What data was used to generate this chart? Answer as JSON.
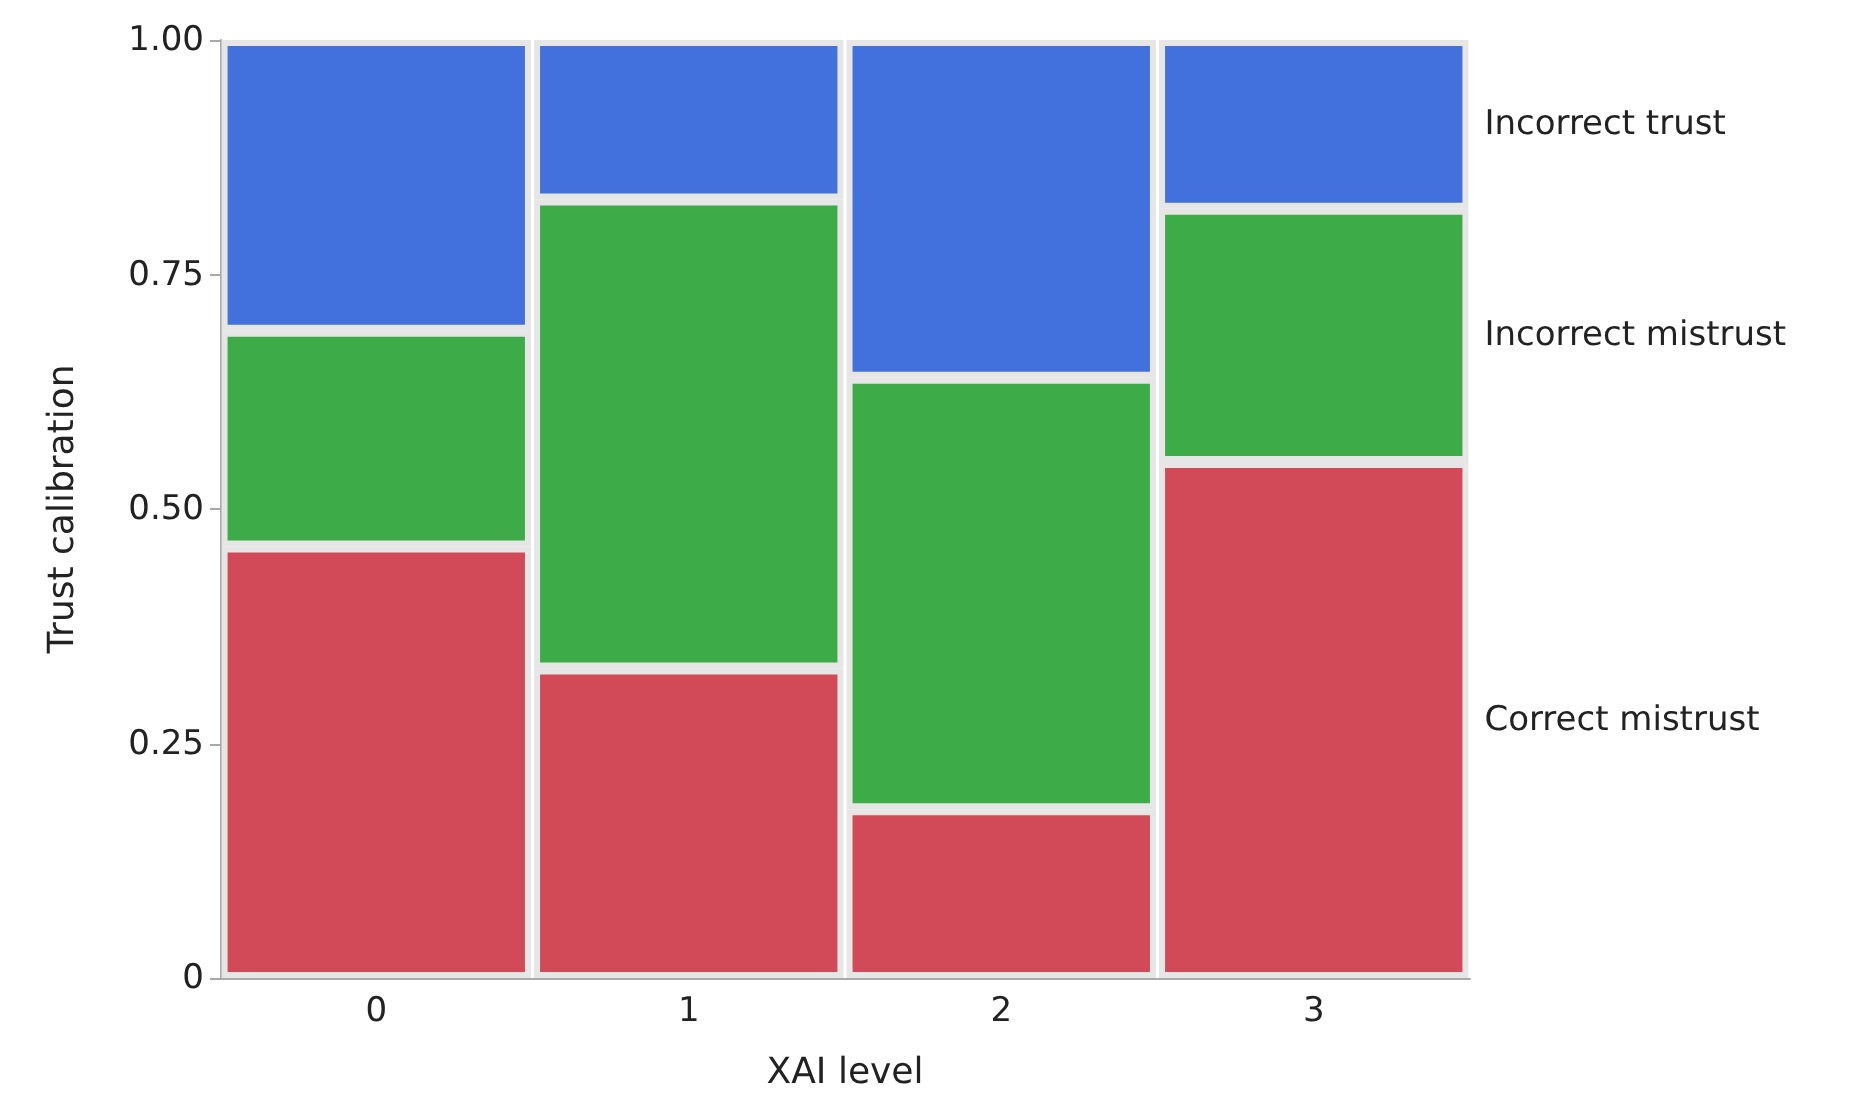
{
  "chart_data": {
    "type": "bar",
    "stacked": true,
    "xlabel": "XAI level",
    "ylabel": "Trust calibration",
    "categories": [
      "0",
      "1",
      "2",
      "3"
    ],
    "series": [
      {
        "name": "Correct mistrust",
        "color": "#d24a57",
        "values": [
          0.46,
          0.33,
          0.18,
          0.55
        ]
      },
      {
        "name": "Incorrect mistrust",
        "color": "#3dab47",
        "values": [
          0.23,
          0.5,
          0.46,
          0.27
        ]
      },
      {
        "name": "Incorrect trust",
        "color": "#4270dc",
        "values": [
          0.31,
          0.17,
          0.36,
          0.18
        ]
      }
    ],
    "ylim": [
      0,
      1
    ],
    "yticks": [
      {
        "value": 0,
        "label": "0"
      },
      {
        "value": 0.25,
        "label": "0.25"
      },
      {
        "value": 0.5,
        "label": "0.50"
      },
      {
        "value": 0.75,
        "label": "0.75"
      },
      {
        "value": 1,
        "label": "1.00"
      }
    ],
    "grid": false,
    "legend": false
  }
}
